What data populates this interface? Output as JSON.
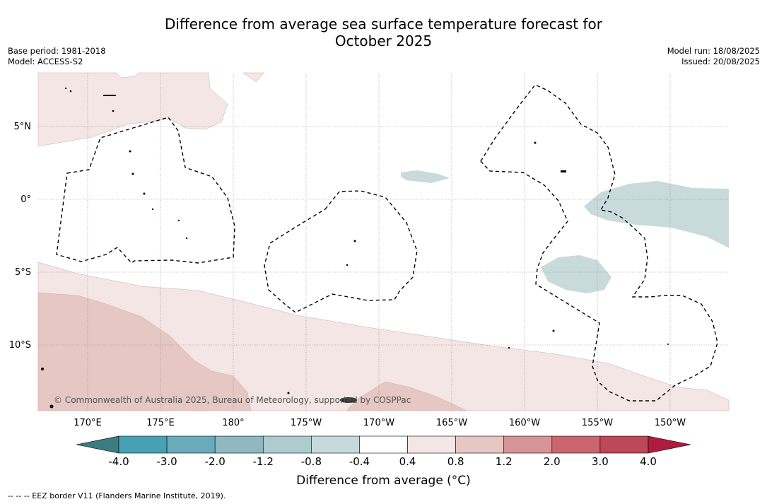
{
  "title": {
    "line1": "Difference from average sea surface temperature forecast for",
    "line2": "October 2025"
  },
  "meta_left": {
    "base_period": "Base period: 1981-2018",
    "model": "Model: ACCESS-S2"
  },
  "meta_right": {
    "model_run": "Model run: 18/08/2025",
    "issued": "Issued: 20/08/2025"
  },
  "map": {
    "lat_labels": [
      "5°N",
      "0°",
      "5°S",
      "10°S"
    ],
    "lon_labels": [
      "170°E",
      "175°E",
      "180°",
      "175°W",
      "170°W",
      "165°W",
      "160°W",
      "155°W",
      "150°W"
    ],
    "copyright": "© Commonwealth of Australia 2025, Bureau of Meteorology, supported by COSPPac",
    "colors": {
      "warm_light": "#f3e6e4",
      "warm_mid": "#e6c7c3",
      "cool_light": "#c8dadb",
      "border": "#000000",
      "grid": "#888888"
    }
  },
  "colorbar": {
    "ticks": [
      "-4.0",
      "-3.0",
      "-2.0",
      "-1.2",
      "-0.8",
      "-0.4",
      "0.4",
      "0.8",
      "1.2",
      "2.0",
      "3.0",
      "4.0"
    ],
    "colors": [
      "#3b7c80",
      "#48a1b2",
      "#6aabbb",
      "#8fb8c1",
      "#aeccce",
      "#c6dadb",
      "#ffffff",
      "#f3e6e4",
      "#e6c7c3",
      "#d69398",
      "#c96670",
      "#be4759",
      "#ad1c3e"
    ],
    "title": "Difference from average (°C)"
  },
  "footer": "--  --  -- EEZ border V11 (Flanders Marine Institute, 2019)."
}
